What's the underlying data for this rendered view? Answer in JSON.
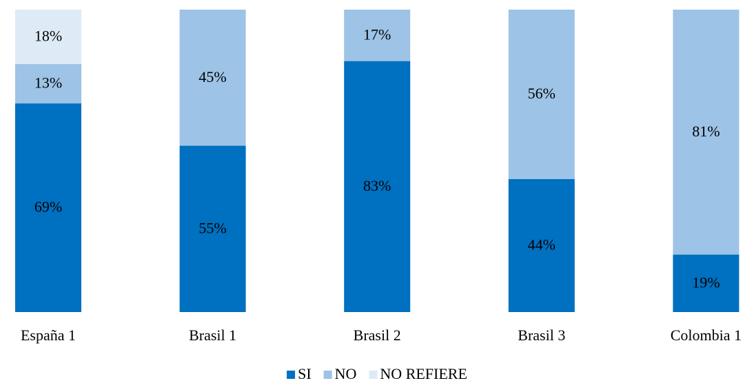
{
  "chart_data": {
    "type": "stacked_bar",
    "categories": [
      "España 1",
      "Brasil 1",
      "Brasil 2",
      "Brasil 3",
      "Colombia 1"
    ],
    "series": [
      {
        "name": "SI",
        "color": "#0070c0",
        "values": [
          69,
          55,
          83,
          44,
          19
        ],
        "value_labels": [
          "69%",
          "55%",
          "83%",
          "44%",
          "19%"
        ]
      },
      {
        "name": "NO",
        "color": "#9dc3e6",
        "values": [
          13,
          45,
          17,
          56,
          81
        ],
        "value_labels": [
          "13%",
          "45%",
          "17%",
          "56%",
          "81%"
        ]
      },
      {
        "name": "NO REFIERE",
        "color": "#deebf7",
        "values": [
          18,
          null,
          null,
          null,
          null
        ],
        "value_labels": [
          "18%",
          null,
          null,
          null,
          null
        ]
      }
    ],
    "ylim": [
      0,
      100
    ],
    "legend": "bottom"
  }
}
